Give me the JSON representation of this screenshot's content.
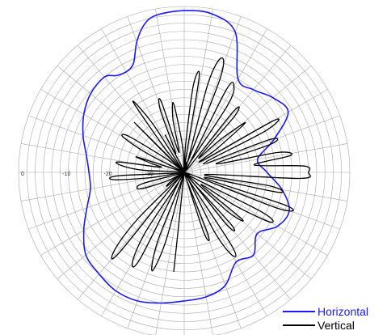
{
  "chart_data": {
    "type": "line",
    "subtype": "polar",
    "title": "",
    "radial_axis": {
      "ticks": [
        "0",
        "-10",
        "-20",
        "-30"
      ],
      "range_db": [
        -40,
        0
      ],
      "grid_ring_step_db": 2,
      "spoke_step_deg": 10
    },
    "grid": true,
    "legend": {
      "placement": "bottom-right",
      "entries": [
        "Horizontal",
        "Vertical"
      ]
    },
    "angle_convention": "degrees counter-clockwise from the right-hand horizontal axis",
    "series": [
      {
        "name": "Horizontal",
        "color": "#1a1aff",
        "theta": [
          0,
          10,
          20,
          30,
          40,
          50,
          60,
          70,
          80,
          90,
          100,
          105,
          110,
          115,
          120,
          125,
          130,
          140,
          150,
          160,
          170,
          180,
          190,
          200,
          210,
          220,
          230,
          240,
          250,
          260,
          270,
          280,
          290,
          300,
          310,
          320,
          330,
          340,
          350,
          360
        ],
        "r_db": [
          -20,
          -22,
          -17,
          -11,
          -12,
          -14,
          -14,
          -4,
          -1.2,
          -1,
          -1.5,
          -3,
          -6.5,
          -11,
          -12,
          -11.5,
          -10,
          -10.5,
          -12,
          -14,
          -16,
          -17,
          -17,
          -15,
          -12,
          -9,
          -8,
          -7,
          -7,
          -8,
          -9,
          -9.5,
          -11,
          -15,
          -14,
          -17,
          -14,
          -13,
          -16,
          -20
        ]
      },
      {
        "name": "Vertical",
        "color": "#000000",
        "theta": [
          0,
          3,
          6,
          9,
          12,
          15,
          18,
          21,
          24,
          27,
          30,
          33,
          36,
          39,
          42,
          45,
          48,
          51,
          54,
          57,
          60,
          63,
          66,
          69,
          72,
          75,
          78,
          81,
          84,
          87,
          90,
          93,
          96,
          99,
          102,
          105,
          108,
          111,
          114,
          117,
          120,
          123,
          126,
          129,
          132,
          135,
          138,
          141,
          144,
          147,
          150,
          153,
          156,
          159,
          162,
          165,
          168,
          171,
          174,
          177,
          180,
          183,
          186,
          189,
          192,
          195,
          198,
          201,
          204,
          207,
          210,
          213,
          216,
          219,
          222,
          225,
          228,
          231,
          234,
          237,
          240,
          243,
          246,
          249,
          252,
          255,
          258,
          261,
          264,
          267,
          270,
          273,
          276,
          279,
          282,
          285,
          288,
          291,
          294,
          297,
          300,
          303,
          306,
          309,
          312,
          315,
          318,
          321,
          324,
          327,
          330,
          333,
          336,
          339,
          342,
          345,
          348,
          351,
          354,
          357,
          360
        ],
        "r_db": [
          -10,
          -11,
          -23,
          -14,
          -17,
          -32,
          -18,
          -18,
          -35,
          -18,
          -15,
          -35,
          -30,
          -21,
          -28,
          -35,
          -22,
          -21,
          -40,
          -21,
          -16,
          -18,
          -40,
          -16,
          -11,
          -18,
          -40,
          -17,
          -19,
          -33,
          -40,
          -35,
          -30,
          -23,
          -27,
          -35,
          -22,
          -24,
          -35,
          -30,
          -40,
          -26,
          -19,
          -33,
          -40,
          -23,
          -40,
          -37,
          -33,
          -24,
          -23,
          -30,
          -40,
          -40,
          -28,
          -32,
          -34,
          -24,
          -25,
          -30,
          -40,
          -24,
          -23,
          -32,
          -40,
          -30,
          -28,
          -29,
          -33,
          -36,
          -40,
          -37,
          -35,
          -35,
          -40,
          -24,
          -15,
          -15,
          -40,
          -23,
          -15,
          -17,
          -40,
          -22,
          -15,
          -23,
          -40,
          -40,
          -16,
          -40,
          -40,
          -40,
          -40,
          -40,
          -40,
          -40,
          -25,
          -24,
          -40,
          -24,
          -17,
          -19,
          -40,
          -24,
          -23,
          -40,
          -26,
          -22,
          -35,
          -25,
          -16,
          -19,
          -40,
          -16,
          -14,
          -35,
          -17,
          -19,
          -35,
          -12,
          -10
        ]
      }
    ]
  }
}
